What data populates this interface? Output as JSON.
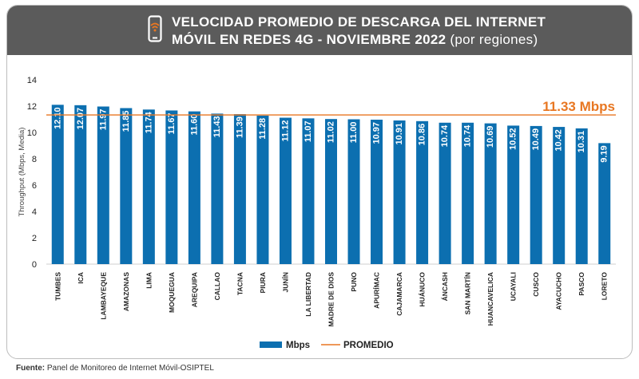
{
  "header": {
    "title_line1": "VELOCIDAD PROMEDIO DE DESCARGA DEL INTERNET",
    "title_line2": "MÓVIL EN REDES 4G - NOVIEMBRE 2022",
    "title_suffix": "(por regiones)",
    "icon": "smartphone-wifi-icon"
  },
  "chart_data": {
    "type": "bar",
    "ylabel": "Throughput (Mbps, Media)",
    "ylim": [
      0,
      14
    ],
    "yticks": [
      0,
      2,
      4,
      6,
      8,
      10,
      12,
      14
    ],
    "categories": [
      "TUMBES",
      "ICA",
      "LAMBAYEQUE",
      "AMAZONAS",
      "LIMA",
      "MOQUEGUA",
      "AREQUIPA",
      "CALLAO",
      "TACNA",
      "PIURA",
      "JUNÍN",
      "LA LIBERTAD",
      "MADRE DE DIOS",
      "PUNO",
      "APURÍMAC",
      "CAJAMARCA",
      "HUÁNUCO",
      "ÁNCASH",
      "SAN MARTÍN",
      "HUANCAVELICA",
      "UCAYALI",
      "CUSCO",
      "AYACUCHO",
      "PASCO",
      "LORETO"
    ],
    "series": [
      {
        "name": "Mbps",
        "color": "#0c6fb0",
        "values": [
          12.1,
          12.07,
          11.97,
          11.85,
          11.74,
          11.67,
          11.6,
          11.43,
          11.39,
          11.28,
          11.12,
          11.07,
          11.02,
          11.0,
          10.97,
          10.91,
          10.86,
          10.74,
          10.74,
          10.69,
          10.52,
          10.49,
          10.42,
          10.31,
          9.19
        ],
        "labels": [
          "12.10",
          "12.07",
          "11.97",
          "11.85",
          "11.74",
          "11.67",
          "11.60",
          "11.43",
          "11.39",
          "11.28",
          "11.12",
          "11.07",
          "11.02",
          "11.00",
          "10.97",
          "10.91",
          "10.86",
          "10.74",
          "10.74",
          "10.69",
          "10.52",
          "10.49",
          "10.42",
          "10.31",
          "9.19"
        ]
      }
    ],
    "average": {
      "name": "PROMEDIO",
      "value": 11.33,
      "label": "11.33 Mbps",
      "color": "#e87722"
    },
    "grid": false,
    "legend": "bottom-center"
  },
  "footer": {
    "source_label": "Fuente:",
    "source_text": "Panel de Monitoreo de Internet Móvil-OSIPTEL"
  }
}
